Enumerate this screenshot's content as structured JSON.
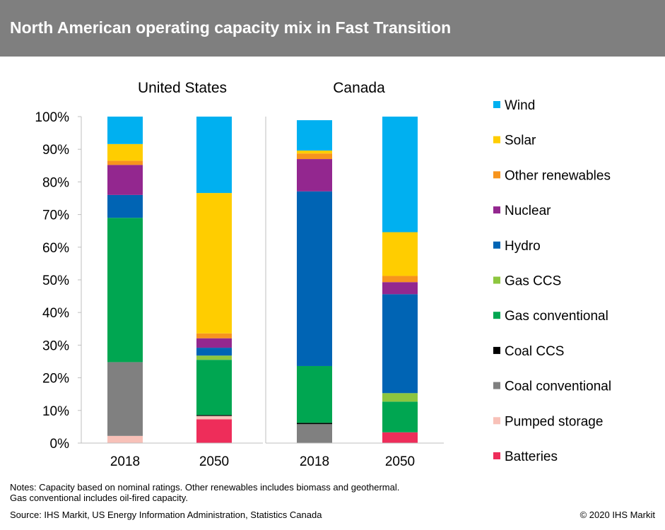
{
  "title": "North American operating capacity mix in Fast Transition",
  "notes": {
    "line1": "Notes: Capacity based on nominal ratings. Other renewables includes biomass and geothermal.",
    "line2": "Gas conventional includes oil-fired capacity."
  },
  "source": "Source: IHS Markit, US Energy Information Administration, Statistics Canada",
  "copyright": "© 2020 IHS Markit",
  "chart_data": {
    "type": "bar",
    "stacked": true,
    "grid": false,
    "legend_position": "right",
    "y_ticks": [
      "0%",
      "10%",
      "20%",
      "30%",
      "40%",
      "50%",
      "60%",
      "70%",
      "80%",
      "90%",
      "100%"
    ],
    "ylim": [
      0,
      100
    ],
    "panels": [
      {
        "title": "United States",
        "categories": [
          "2018",
          "2050"
        ],
        "series": [
          {
            "name": "Batteries",
            "color": "#ee2d5a",
            "values": [
              0.0,
              7.3
            ]
          },
          {
            "name": "Pumped storage",
            "color": "#f8c1b8",
            "values": [
              2.2,
              1.0
            ]
          },
          {
            "name": "Coal conventional",
            "color": "#808080",
            "values": [
              22.6,
              0.0
            ]
          },
          {
            "name": "Coal CCS",
            "color": "#000000",
            "values": [
              0.0,
              0.3
            ]
          },
          {
            "name": "Gas conventional",
            "color": "#00a651",
            "values": [
              44.2,
              16.9
            ]
          },
          {
            "name": "Gas CCS",
            "color": "#8dc63f",
            "values": [
              0.0,
              1.3
            ]
          },
          {
            "name": "Hydro",
            "color": "#0064b4",
            "values": [
              7.0,
              2.4
            ]
          },
          {
            "name": "Nuclear",
            "color": "#93278f",
            "values": [
              9.2,
              2.9
            ]
          },
          {
            "name": "Other renewables",
            "color": "#f7941d",
            "values": [
              1.3,
              1.5
            ]
          },
          {
            "name": "Solar",
            "color": "#ffcd00",
            "values": [
              5.1,
              43.0
            ]
          },
          {
            "name": "Wind",
            "color": "#00b0f0",
            "values": [
              8.4,
              23.4
            ]
          }
        ]
      },
      {
        "title": "Canada",
        "categories": [
          "2018",
          "2050"
        ],
        "series": [
          {
            "name": "Batteries",
            "color": "#ee2d5a",
            "values": [
              0.0,
              3.3
            ]
          },
          {
            "name": "Pumped storage",
            "color": "#f8c1b8",
            "values": [
              0.0,
              0.0
            ]
          },
          {
            "name": "Coal conventional",
            "color": "#808080",
            "values": [
              5.8,
              0.0
            ]
          },
          {
            "name": "Coal CCS",
            "color": "#000000",
            "values": [
              0.4,
              0.0
            ]
          },
          {
            "name": "Gas conventional",
            "color": "#00a651",
            "values": [
              17.4,
              9.4
            ]
          },
          {
            "name": "Gas CCS",
            "color": "#8dc63f",
            "values": [
              0.0,
              2.6
            ]
          },
          {
            "name": "Hydro",
            "color": "#0064b4",
            "values": [
              53.5,
              30.3
            ]
          },
          {
            "name": "Nuclear",
            "color": "#93278f",
            "values": [
              9.9,
              3.7
            ]
          },
          {
            "name": "Other renewables",
            "color": "#f7941d",
            "values": [
              1.7,
              1.9
            ]
          },
          {
            "name": "Solar",
            "color": "#ffcd00",
            "values": [
              0.9,
              13.4
            ]
          },
          {
            "name": "Wind",
            "color": "#00b0f0",
            "values": [
              9.3,
              35.4
            ]
          }
        ]
      }
    ],
    "legend": [
      {
        "name": "Wind",
        "color": "#00b0f0"
      },
      {
        "name": "Solar",
        "color": "#ffcd00"
      },
      {
        "name": "Other renewables",
        "color": "#f7941d"
      },
      {
        "name": "Nuclear",
        "color": "#93278f"
      },
      {
        "name": "Hydro",
        "color": "#0064b4"
      },
      {
        "name": "Gas CCS",
        "color": "#8dc63f"
      },
      {
        "name": "Gas conventional",
        "color": "#00a651"
      },
      {
        "name": "Coal CCS",
        "color": "#000000"
      },
      {
        "name": "Coal conventional",
        "color": "#808080"
      },
      {
        "name": "Pumped storage",
        "color": "#f8c1b8"
      },
      {
        "name": "Batteries",
        "color": "#ee2d5a"
      }
    ]
  }
}
